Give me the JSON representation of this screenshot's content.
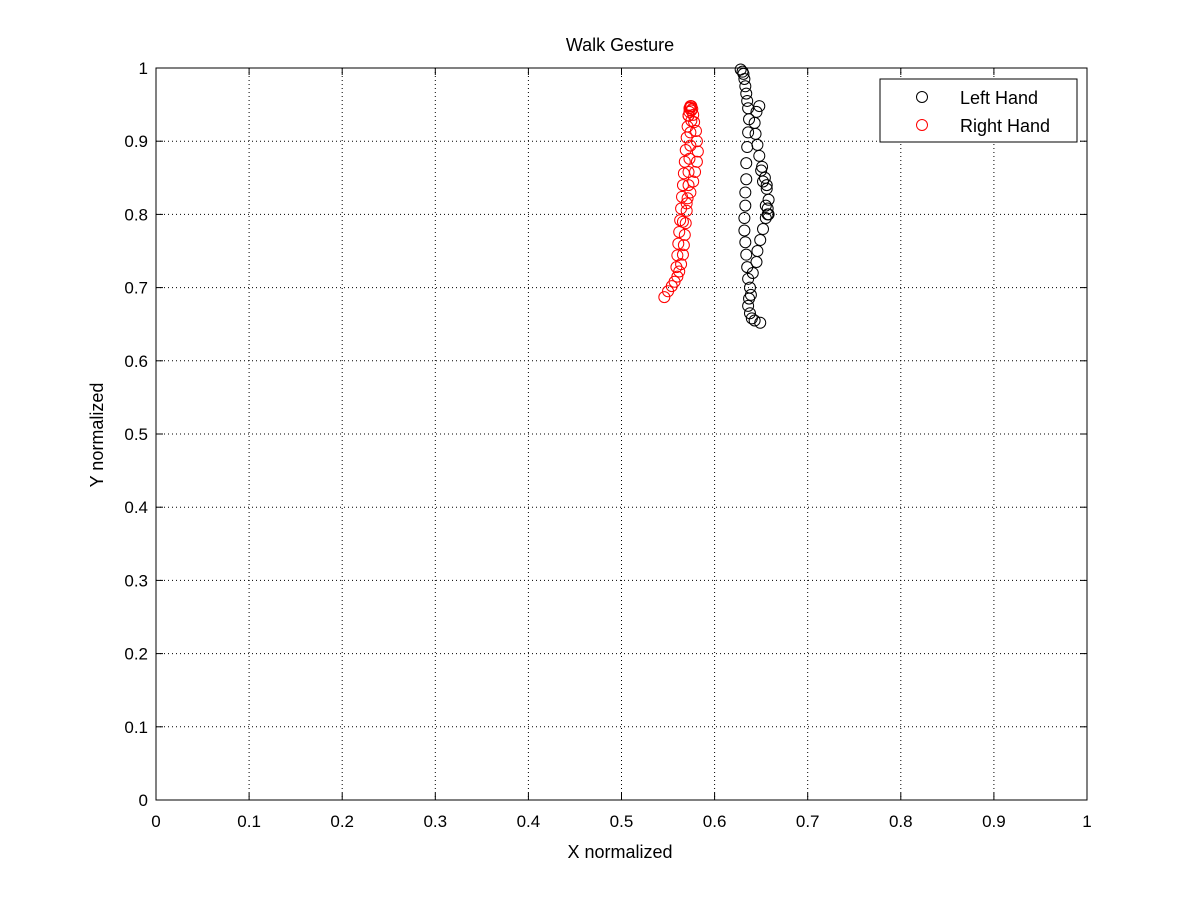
{
  "chart_data": {
    "type": "scatter",
    "title": "Walk Gesture",
    "xlabel": "X normalized",
    "ylabel": "Y normalized",
    "xlim": [
      0,
      1
    ],
    "ylim": [
      0,
      1
    ],
    "xticks": [
      "0",
      "0.1",
      "0.2",
      "0.3",
      "0.4",
      "0.5",
      "0.6",
      "0.7",
      "0.8",
      "0.9",
      "1"
    ],
    "yticks": [
      "0",
      "0.1",
      "0.2",
      "0.3",
      "0.4",
      "0.5",
      "0.6",
      "0.7",
      "0.8",
      "0.9",
      "1"
    ],
    "grid": true,
    "grid_style": "dotted",
    "marker": "open-circle",
    "legend_position": "top-right",
    "series": [
      {
        "name": "Left Hand",
        "color": "#000000",
        "x": [
          0.628,
          0.63,
          0.631,
          0.632,
          0.633,
          0.634,
          0.635,
          0.636,
          0.637,
          0.636,
          0.635,
          0.634,
          0.634,
          0.633,
          0.633,
          0.632,
          0.632,
          0.633,
          0.634,
          0.635,
          0.636,
          0.638,
          0.639,
          0.637,
          0.636,
          0.638,
          0.64,
          0.643,
          0.649,
          0.645,
          0.641,
          0.646,
          0.649,
          0.652,
          0.655,
          0.657,
          0.658,
          0.656,
          0.654,
          0.651,
          0.648,
          0.646,
          0.644,
          0.643,
          0.645,
          0.648,
          0.65,
          0.652,
          0.655,
          0.657,
          0.658,
          0.656
        ],
        "y": [
          0.998,
          0.995,
          0.992,
          0.985,
          0.975,
          0.965,
          0.955,
          0.945,
          0.93,
          0.912,
          0.892,
          0.87,
          0.848,
          0.83,
          0.812,
          0.795,
          0.778,
          0.762,
          0.745,
          0.728,
          0.712,
          0.7,
          0.69,
          0.685,
          0.675,
          0.665,
          0.658,
          0.655,
          0.652,
          0.735,
          0.72,
          0.75,
          0.765,
          0.78,
          0.795,
          0.808,
          0.82,
          0.835,
          0.85,
          0.865,
          0.88,
          0.895,
          0.91,
          0.925,
          0.94,
          0.948,
          0.86,
          0.845,
          0.812,
          0.8,
          0.8,
          0.84
        ]
      },
      {
        "name": "Right Hand",
        "color": "#ff0000",
        "x": [
          0.546,
          0.55,
          0.554,
          0.557,
          0.56,
          0.562,
          0.564,
          0.566,
          0.567,
          0.568,
          0.569,
          0.57,
          0.571,
          0.572,
          0.572,
          0.573,
          0.574,
          0.574,
          0.575,
          0.575,
          0.574,
          0.573,
          0.572,
          0.571,
          0.57,
          0.569,
          0.568,
          0.567,
          0.566,
          0.565,
          0.564,
          0.563,
          0.562,
          0.561,
          0.56,
          0.559,
          0.566,
          0.57,
          0.574,
          0.577,
          0.579,
          0.581,
          0.582,
          0.581,
          0.58,
          0.578,
          0.577,
          0.576,
          0.575,
          0.574,
          0.573,
          0.572
        ],
        "y": [
          0.687,
          0.695,
          0.702,
          0.708,
          0.715,
          0.722,
          0.732,
          0.745,
          0.758,
          0.772,
          0.788,
          0.805,
          0.822,
          0.84,
          0.858,
          0.876,
          0.894,
          0.912,
          0.928,
          0.942,
          0.948,
          0.945,
          0.935,
          0.92,
          0.905,
          0.888,
          0.872,
          0.856,
          0.84,
          0.824,
          0.808,
          0.792,
          0.776,
          0.76,
          0.744,
          0.728,
          0.79,
          0.815,
          0.83,
          0.845,
          0.858,
          0.872,
          0.886,
          0.9,
          0.914,
          0.926,
          0.936,
          0.944,
          0.948,
          0.946,
          0.94,
          0.935
        ]
      }
    ]
  }
}
